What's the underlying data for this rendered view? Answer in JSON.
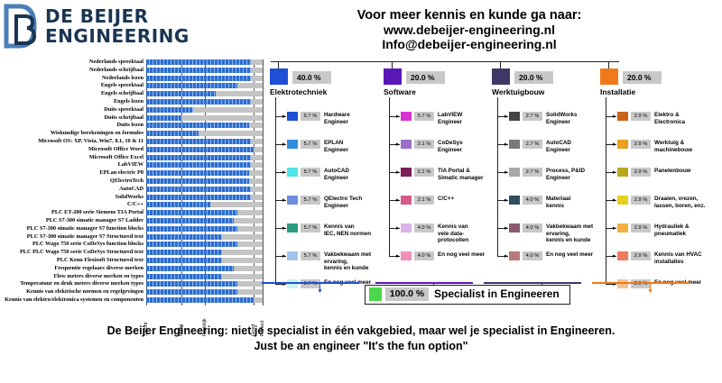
{
  "logo": {
    "line1": "DE BEIJER",
    "line2": "ENGINEERING",
    "colors": {
      "primary": "#1a3552",
      "accent": "#4a7fb7"
    }
  },
  "header": {
    "line1": "Voor meer kennis en kunde ga naar:",
    "line2": "www.debeijer-engineering.nl",
    "line3": "Info@debeijer-engineering.nl"
  },
  "chart_data": {
    "type": "bar",
    "orientation": "horizontal",
    "categories": [
      "Nederlands spreektaal",
      "Nederlands schrijftaal",
      "Nederlands lezen",
      "Engels spreektaal",
      "Engels schrijftaal",
      "Engels lezen",
      "Duits spreektaal",
      "Duits schrijftaal",
      "Duits lezen",
      "Wiskundige berekeningen en formules",
      "Microsoft OS: XP, Vista, Win7, 8.1, 10 & 11",
      "Microsoft Office Word",
      "Microsoft Office Excel",
      "LabVIEW",
      "EPLan electric P8",
      "QElectroTech",
      "AutoCAD",
      "SolidWorks",
      "C/C++",
      "PLC  ET-200 serie Siemens TIA Portal",
      "PLC S7-300 simatic manager S7 Ladder",
      "PLC S7-300 simatic manager S7 function blocks",
      "PLC S7-300 simatic manager S7 Structured text",
      "PLC Wago 750 serie CoDeSys function blocks",
      "PLC PLC Wago 750 serie CoDeSys Structured text",
      "PLC Kenu Flexisoft Structured text",
      "Frequentie regelaars diverse merken",
      "Flow meters diverse merken en types",
      "Temperatuur en druk meters diverse merken types",
      "Kennis van elektrische normen en regelgevingen",
      "Kennis van elektro/elektronica systemen en componenten"
    ],
    "values": [
      90,
      90,
      90,
      78,
      60,
      90,
      40,
      30,
      88,
      45,
      90,
      92,
      90,
      90,
      88,
      88,
      90,
      90,
      55,
      78,
      75,
      78,
      65,
      78,
      65,
      65,
      75,
      65,
      78,
      78,
      92
    ],
    "xlim": [
      0,
      100
    ],
    "xtick_labels": [
      "Slecht",
      "Matig",
      "Redelijk",
      "Goed",
      "Perfect"
    ],
    "xticks": [
      0,
      30,
      50,
      92,
      100
    ],
    "grid": true,
    "bar_color": "#2d6ed0",
    "track_color": "#c4c4c4"
  },
  "categories": [
    {
      "name": "Elektrotechniek",
      "pct": "40.0 %",
      "color": "#1f4fd6",
      "items": [
        {
          "pct": "5.7 %",
          "label": "Hardware\nEngineer",
          "color": "#1f4fd6"
        },
        {
          "pct": "5.7 %",
          "label": "EPLAN\nEngineer",
          "color": "#2f8ee0"
        },
        {
          "pct": "5.7 %",
          "label": "AutoCAD\nEngineer",
          "color": "#4fe3e8"
        },
        {
          "pct": "5.7 %",
          "label": "QElectro Tech\nEngineer",
          "color": "#6c8fe0"
        },
        {
          "pct": "5.7 %",
          "label": "Kennis van\nIEC, NEN normen",
          "color": "#2a9a7f"
        },
        {
          "pct": "5.7 %",
          "label": "Vakbekwaam met\nervaring,\nkennis en kunde",
          "color": "#a3c4ee"
        },
        {
          "pct": "5.7 %",
          "label": "En nog veel meer",
          "color": "#c9f3f4"
        }
      ]
    },
    {
      "name": "Software",
      "pct": "20.0 %",
      "color": "#5a17b8",
      "items": [
        {
          "pct": "5.7 %",
          "label": "LabVIEW\nEngineer",
          "color": "#d633d6"
        },
        {
          "pct": "2.1 %",
          "label": "CoDeSys\nEngineer",
          "color": "#9b6fc9"
        },
        {
          "pct": "2.1 %",
          "label": "TIA Portal &\nSimatic manager",
          "color": "#7a1f5c"
        },
        {
          "pct": "2.1 %",
          "label": "C/C++",
          "color": "#d65a8a"
        },
        {
          "pct": "4.0 %",
          "label": "Kennis van\nvele data-\nprotocollen",
          "color": "#d9b2e8"
        },
        {
          "pct": "4.0 %",
          "label": "En nog veel meer",
          "color": "#f08fb8"
        }
      ]
    },
    {
      "name": "Werktuigbouw",
      "pct": "20.0 %",
      "color": "#3f3866",
      "items": [
        {
          "pct": "2.7 %",
          "label": "SolidWorks\nEngineer",
          "color": "#444444"
        },
        {
          "pct": "2.7 %",
          "label": "AutoCAD\nEngineer",
          "color": "#7a7a7a"
        },
        {
          "pct": "2.7 %",
          "label": "Process, P&ID\nEngineer",
          "color": "#a8a8a8"
        },
        {
          "pct": "4.0 %",
          "label": "Materiaal\nkennis",
          "color": "#2f4f5f"
        },
        {
          "pct": "4.0 %",
          "label": "Vakbekwaam met\nervaring,\nkennis en kunde",
          "color": "#8c5a6e"
        },
        {
          "pct": "4.0 %",
          "label": "En nog veel meer",
          "color": "#b87a7a"
        }
      ]
    },
    {
      "name": "Installatie",
      "pct": "20.0 %",
      "color": "#f07a1a",
      "items": [
        {
          "pct": "2.9 %",
          "label": "Elektro &\nElectronica",
          "color": "#c8641e"
        },
        {
          "pct": "2.9 %",
          "label": "Werktuig &\nmachinebouw",
          "color": "#e8a01e"
        },
        {
          "pct": "2.9 %",
          "label": "Panelenbouw",
          "color": "#b8a820"
        },
        {
          "pct": "2.9 %",
          "label": "Draaien, vrezen,\nlassen, boren, enz.",
          "color": "#e8d01e"
        },
        {
          "pct": "2.9 %",
          "label": "Hydrauliek &\npneumatiek",
          "color": "#f0b040"
        },
        {
          "pct": "2.9 %",
          "label": "Kennis van HVAC\ninstallaties",
          "color": "#f07a60"
        },
        {
          "pct": "2.9 %",
          "label": "En nog veel meer",
          "color": "#f5c090"
        }
      ]
    }
  ],
  "specialist": {
    "pct": "100.0 %",
    "label": "Specialist in Engineeren",
    "color": "#4cd64c"
  },
  "footer": {
    "line1": "De Beijer Engineering: niet je specialist in één vakgebied, maar wel je specialist in Engineeren.",
    "line2": "Just be an engineer \"It's the fun option\""
  }
}
